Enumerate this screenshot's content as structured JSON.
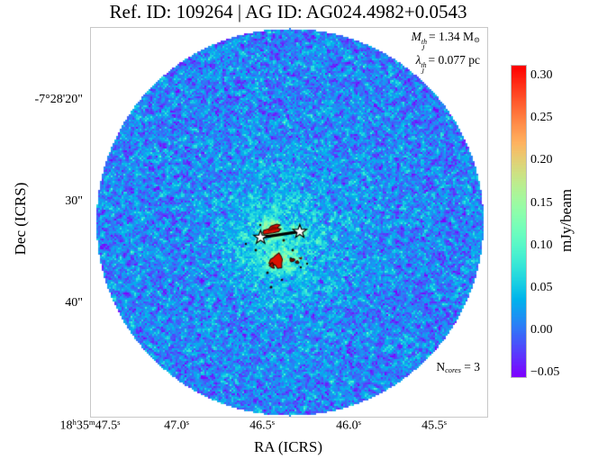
{
  "figure": {
    "title": "Ref. ID: 109264 | AG ID: AG024.4982+0.0543",
    "ref_id": "109264",
    "ag_id": "AG024.4982+0.0543"
  },
  "chart_data": {
    "type": "heatmap",
    "title": "Ref. ID: 109264 | AG ID: AG024.4982+0.0543",
    "xlabel": "RA (ICRS)",
    "ylabel": "Dec (ICRS)",
    "field": {
      "shape": "circle",
      "background": "#ffffff"
    },
    "x_axis": {
      "label": "RA (ICRS)",
      "ticks": [
        {
          "segments": [
            {
              "t": "18"
            },
            {
              "t": "h",
              "sup": true
            },
            {
              "t": "35"
            },
            {
              "t": "m",
              "sup": true
            },
            {
              "t": "47.5"
            },
            {
              "t": "s",
              "sup": true
            }
          ]
        },
        {
          "segments": [
            {
              "t": "47.0"
            },
            {
              "t": "s",
              "sup": true
            }
          ]
        },
        {
          "segments": [
            {
              "t": "46.5"
            },
            {
              "t": "s",
              "sup": true
            }
          ]
        },
        {
          "segments": [
            {
              "t": "46.0"
            },
            {
              "t": "s",
              "sup": true
            }
          ]
        },
        {
          "segments": [
            {
              "t": "45.5"
            },
            {
              "t": "s",
              "sup": true
            }
          ]
        }
      ]
    },
    "y_axis": {
      "label": "Dec (ICRS)",
      "ticks": [
        "-7°28'20\"",
        "30\"",
        "40\""
      ]
    },
    "colorbar": {
      "label": "mJy/beam",
      "tick_labels": [
        "0.30",
        "0.25",
        "0.20",
        "0.15",
        "0.10",
        "0.05",
        "0.00",
        "−0.05"
      ],
      "tick_values": [
        0.3,
        0.25,
        0.2,
        0.15,
        0.1,
        0.05,
        0.0,
        -0.05
      ],
      "vmin": -0.053,
      "vmax": 0.314,
      "colormap": "rainbow"
    },
    "annotations": [
      {
        "name": "jeans-mass",
        "value": "1.34 M⊙",
        "segments": [
          {
            "t": "M",
            "i": true
          },
          {
            "stack": {
              "sup": "th",
              "sub": "J"
            },
            "i": true
          },
          {
            "t": "= 1.34 M"
          },
          {
            "t": "⊙",
            "sub": true
          }
        ]
      },
      {
        "name": "jeans-length",
        "value": "0.077 pc",
        "segments": [
          {
            "t": "λ",
            "i": true
          },
          {
            "stack": {
              "sup": "th",
              "sub": "J"
            },
            "i": true
          },
          {
            "t": "= 0.077 pc"
          }
        ]
      }
    ],
    "n_cores": 3,
    "n_cores_label": {
      "segments": [
        {
          "t": "N"
        },
        {
          "t": "cores",
          "sub": true,
          "i": true
        },
        {
          "t": " = 3"
        }
      ]
    },
    "markers": {
      "stars_frac": [
        [
          0.428,
          0.539
        ],
        [
          0.527,
          0.524
        ]
      ],
      "line_frac": [
        [
          0.428,
          0.539
        ],
        [
          0.527,
          0.524
        ]
      ],
      "cores_frac": [
        [
          0.457,
          0.519
        ],
        [
          0.468,
          0.6
        ],
        [
          0.507,
          0.597
        ]
      ],
      "star_color": "#ffffff",
      "core_color": "#dd1000",
      "line_color": "#000000"
    },
    "noise": {
      "mean": 0.012,
      "sigma": 0.05,
      "seed": 11
    }
  }
}
